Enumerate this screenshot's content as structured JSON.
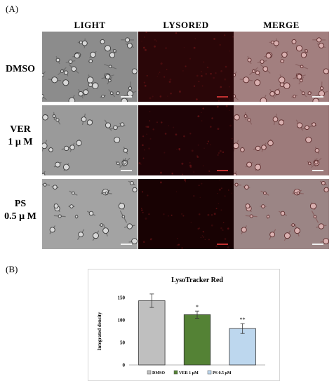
{
  "figure": {
    "panel_a_label": "(A)",
    "panel_b_label": "(B)",
    "columns": [
      "LIGHT",
      "LYSORED",
      "MERGE"
    ],
    "rows": [
      {
        "label_line1": "DMSO",
        "label_line2": ""
      },
      {
        "label_line1": "VER",
        "label_line2": "1 μ M"
      },
      {
        "label_line1": "PS",
        "label_line2": "0.5 μ M"
      }
    ]
  },
  "chart_data": {
    "type": "bar",
    "title": "LysoTracker Red",
    "ylabel": "Integrated density",
    "xlabel": "",
    "categories": [
      "DMSO",
      "VER 1 μM",
      "PS 0.5 μM"
    ],
    "values": [
      143,
      112,
      81
    ],
    "errors": [
      15,
      8,
      11
    ],
    "significance": [
      "",
      "*",
      "**"
    ],
    "colors": [
      "#bfbfbf",
      "#548235",
      "#bdd7ee"
    ],
    "ylim": [
      0,
      150
    ],
    "yticks": [
      0,
      50,
      100,
      150
    ],
    "grid": false,
    "legend": "bottom"
  },
  "colors": {
    "light_panel": "#8a8a8a",
    "lysored_panel": "#220406",
    "merge_panel": "#9e7c7c",
    "bar_outline": "#333333"
  }
}
